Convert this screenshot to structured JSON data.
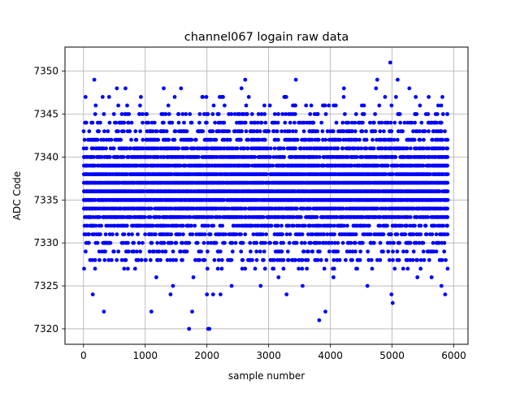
{
  "chart_data": {
    "type": "scatter",
    "title": "channel067 logain raw data",
    "xlabel": "sample number",
    "ylabel": "ADC Code",
    "xlim": [
      -300,
      6230
    ],
    "ylim": [
      7318.2,
      7352.8
    ],
    "xticks": [
      0,
      1000,
      2000,
      3000,
      4000,
      5000,
      6000
    ],
    "yticks": [
      7320,
      7325,
      7330,
      7335,
      7340,
      7345,
      7350
    ],
    "grid": true,
    "marker_color": "#0000ff",
    "series": [
      {
        "n_samples": 6000,
        "x_range": [
          0,
          5900
        ],
        "core_range": [
          7329,
          7344
        ],
        "points": [
          [
            175,
            7349
          ],
          [
            2620,
            7349
          ],
          [
            3440,
            7349
          ],
          [
            4760,
            7349
          ],
          [
            5090,
            7349
          ],
          [
            4970,
            7351
          ],
          [
            540,
            7348
          ],
          [
            680,
            7348
          ],
          [
            1300,
            7348
          ],
          [
            1580,
            7348
          ],
          [
            2560,
            7348
          ],
          [
            4220,
            7348
          ],
          [
            4740,
            7348
          ],
          [
            5280,
            7348
          ],
          [
            1710,
            7320
          ],
          [
            2020,
            7320
          ],
          [
            2040,
            7320
          ],
          [
            3820,
            7321
          ],
          [
            330,
            7322
          ],
          [
            1100,
            7322
          ],
          [
            1760,
            7322
          ],
          [
            3920,
            7322
          ],
          [
            150,
            7324
          ],
          [
            1410,
            7324
          ],
          [
            2000,
            7324
          ],
          [
            2100,
            7324
          ],
          [
            2220,
            7324
          ],
          [
            3290,
            7324
          ],
          [
            4990,
            7324
          ],
          [
            5860,
            7324
          ],
          [
            5010,
            7323
          ],
          [
            5800,
            7325
          ],
          [
            4600,
            7325
          ],
          [
            3550,
            7325
          ],
          [
            2870,
            7325
          ],
          [
            2400,
            7325
          ],
          [
            1450,
            7325
          ],
          [
            1180,
            7326
          ],
          [
            1780,
            7326
          ],
          [
            3160,
            7326
          ],
          [
            4050,
            7326
          ],
          [
            5410,
            7326
          ],
          [
            5640,
            7326
          ],
          [
            10,
            7327
          ],
          [
            2240,
            7327
          ],
          [
            3080,
            7327
          ],
          [
            4420,
            7327
          ],
          [
            5900,
            7327
          ]
        ]
      }
    ]
  }
}
